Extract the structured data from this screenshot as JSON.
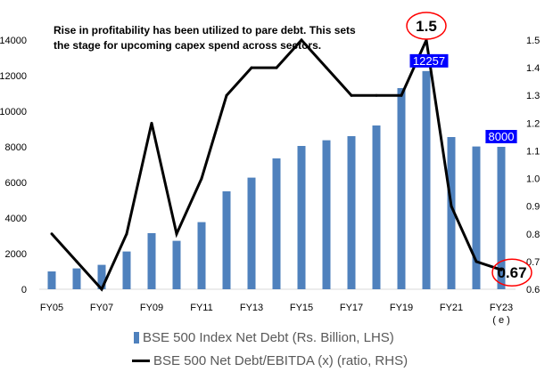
{
  "chart_data": {
    "type": "bar+line",
    "title": "",
    "annotation": "Rise in profitability has been utilized to pare debt. This sets the stage for upcoming capex spend across sectors.",
    "categories": [
      "FY05",
      "FY06",
      "FY07",
      "FY08",
      "FY09",
      "FY10",
      "FY11",
      "FY12",
      "FY13",
      "FY14",
      "FY15",
      "FY16",
      "FY17",
      "FY18",
      "FY19",
      "FY20",
      "FY21",
      "FY22",
      "FY23"
    ],
    "x_tick_labels": [
      "FY05",
      "FY07",
      "FY09",
      "FY11",
      "FY13",
      "FY15",
      "FY17",
      "FY19",
      "FY21",
      "FY23"
    ],
    "x_tick_sublabel": "( e )",
    "series": [
      {
        "name": "BSE 500 Index Net Debt (Rs. Billion, LHS)",
        "type": "bar",
        "axis": "left",
        "color": "#4f81bd",
        "values": [
          1000,
          1170,
          1370,
          2120,
          3150,
          2720,
          3770,
          5500,
          6270,
          7350,
          8050,
          8370,
          8600,
          9200,
          11300,
          12257,
          8550,
          8020,
          8000
        ]
      },
      {
        "name": "BSE 500 Net Debt/EBITDA (x) (ratio, RHS)",
        "type": "line",
        "axis": "right",
        "color": "#000000",
        "values": [
          0.8,
          0.7,
          0.6,
          0.8,
          1.2,
          0.8,
          1.0,
          1.3,
          1.4,
          1.4,
          1.5,
          1.4,
          1.3,
          1.3,
          1.3,
          1.5,
          0.9,
          0.7,
          0.67
        ]
      }
    ],
    "left_axis": {
      "ylim": [
        0,
        14000
      ],
      "ticks": [
        "0",
        "2000",
        "4000",
        "6000",
        "8000",
        "10000",
        "12000",
        "14000"
      ]
    },
    "right_axis": {
      "ylim": [
        0.6,
        1.5
      ],
      "ticks": [
        "0.6",
        "0.7",
        "0.8",
        "0.9",
        "1.0",
        "1.1",
        "1.2",
        "1.3",
        "1.4",
        "1.5"
      ]
    },
    "data_labels": [
      {
        "series": 0,
        "index": 15,
        "text": "12257"
      },
      {
        "series": 0,
        "index": 18,
        "text": "8000"
      },
      {
        "series": 1,
        "index": 15,
        "text": "1.5"
      },
      {
        "series": 1,
        "index": 18,
        "text": "0.67"
      }
    ],
    "legend_position": "bottom",
    "grid": false
  }
}
